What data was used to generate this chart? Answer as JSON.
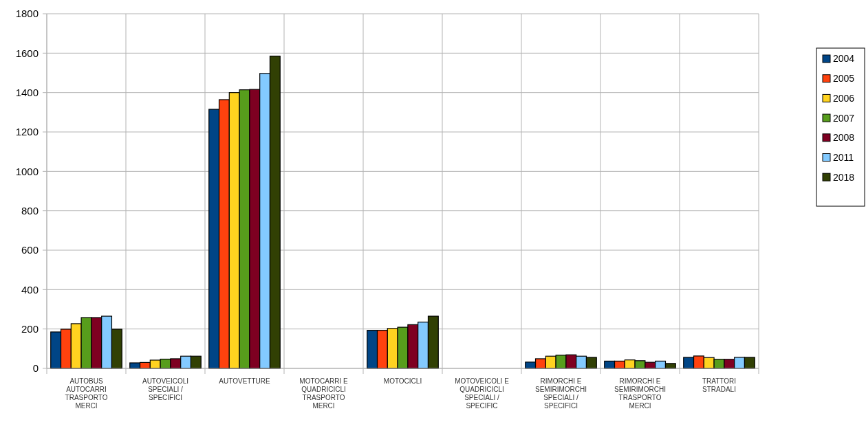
{
  "chart_data": {
    "type": "bar",
    "categories": [
      "AUTOBUS AUTOCARRI TRASPORTO MERCI",
      "AUTOVEICOLI SPECIALI / SPECIFICI",
      "AUTOVETTURE",
      "MOTOCARRI E QUADRICICLI TRASPORTO MERCI",
      "MOTOCICLI",
      "MOTOVEICOLI E QUADRICICLI SPECIALI / SPECIFIC",
      "RIMORCHI E SEMIRIMORCHI SPECIALI / SPECIFICI",
      "RIMORCHI E SEMIRIMORCHI TRASPORTO MERCI",
      "TRATTORI STRADALI"
    ],
    "series": [
      {
        "name": "2004",
        "color": "#004586",
        "values": [
          185,
          28,
          1315,
          null,
          193,
          null,
          32,
          37,
          56
        ]
      },
      {
        "name": "2005",
        "color": "#ff420e",
        "values": [
          199,
          30,
          1364,
          null,
          193,
          null,
          49,
          37,
          63
        ]
      },
      {
        "name": "2006",
        "color": "#ffd320",
        "values": [
          227,
          42,
          1400,
          null,
          203,
          null,
          62,
          43,
          55
        ]
      },
      {
        "name": "2007",
        "color": "#579d1c",
        "values": [
          258,
          47,
          1414,
          null,
          209,
          null,
          67,
          39,
          46
        ]
      },
      {
        "name": "2008",
        "color": "#7e0021",
        "values": [
          258,
          49,
          1416,
          null,
          222,
          null,
          69,
          31,
          46
        ]
      },
      {
        "name": "2011",
        "color": "#83caff",
        "values": [
          265,
          62,
          1497,
          null,
          235,
          null,
          62,
          37,
          56
        ]
      },
      {
        "name": "2018",
        "color": "#314004",
        "values": [
          199,
          62,
          1585,
          null,
          265,
          null,
          56,
          25,
          56
        ]
      }
    ],
    "ylim": [
      0,
      1800
    ],
    "yticks": [
      0,
      200,
      400,
      600,
      800,
      1000,
      1200,
      1400,
      1600,
      1800
    ],
    "grid": true,
    "legend": "right"
  }
}
